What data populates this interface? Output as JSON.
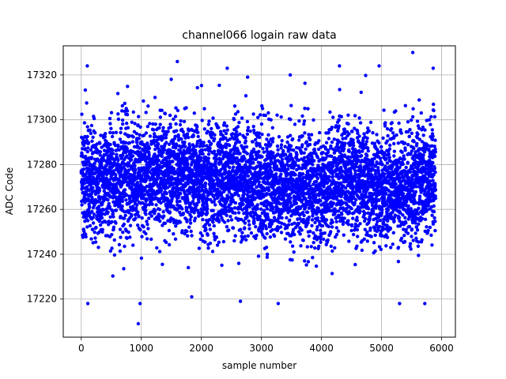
{
  "chart_data": {
    "type": "scatter",
    "title": "channel066 logain raw data",
    "xlabel": "sample number",
    "ylabel": "ADC Code",
    "xlim": [
      -300,
      6230
    ],
    "ylim": [
      17203,
      17333
    ],
    "xticks": [
      0,
      1000,
      2000,
      3000,
      4000,
      5000,
      6000
    ],
    "yticks": [
      17220,
      17240,
      17260,
      17280,
      17300,
      17320
    ],
    "xtick_labels": [
      "0",
      "1000",
      "2000",
      "3000",
      "4000",
      "5000",
      "6000"
    ],
    "ytick_labels": [
      "17220",
      "17240",
      "17260",
      "17280",
      "17300",
      "17320"
    ],
    "grid": true,
    "marker": "circle",
    "color": "#0000ff",
    "series": [
      {
        "n_points": 6000,
        "x_range": [
          0,
          5900
        ],
        "y_center": 17272,
        "y_spread": 17,
        "highlighted_points": [
          {
            "x": 950,
            "y": 17209
          },
          {
            "x": 1600,
            "y": 17326
          },
          {
            "x": 5520,
            "y": 17330
          },
          {
            "x": 100,
            "y": 17324
          },
          {
            "x": 2430,
            "y": 17323
          },
          {
            "x": 4960,
            "y": 17324
          },
          {
            "x": 5860,
            "y": 17323
          },
          {
            "x": 110,
            "y": 17218
          },
          {
            "x": 980,
            "y": 17218
          },
          {
            "x": 3280,
            "y": 17218
          },
          {
            "x": 5300,
            "y": 17218
          },
          {
            "x": 5720,
            "y": 17218
          },
          {
            "x": 1840,
            "y": 17221
          },
          {
            "x": 2650,
            "y": 17219
          },
          {
            "x": 4300,
            "y": 17324
          },
          {
            "x": 3480,
            "y": 17320
          },
          {
            "x": 2770,
            "y": 17319
          }
        ]
      }
    ]
  }
}
